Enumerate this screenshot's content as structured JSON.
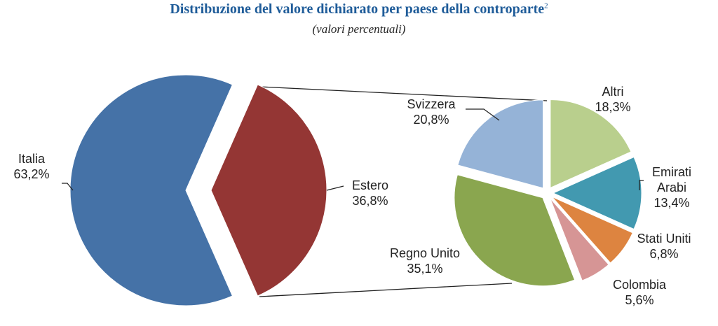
{
  "title": "Distribuzione del valore dichiarato per paese della controparte",
  "title_note": "2",
  "subtitle": "(valori percentuali)",
  "chart_data": {
    "type": "pie",
    "subtype": "pie-of-pie",
    "main": {
      "categories": [
        "Italia",
        "Estero"
      ],
      "values": [
        63.2,
        36.8
      ],
      "labels": [
        "63,2%",
        "36,8%"
      ],
      "colors": [
        "#4572a7",
        "#943634"
      ]
    },
    "secondary": {
      "parent": "Estero",
      "categories": [
        "Altri",
        "Emirati Arabi",
        "Stati Uniti",
        "Colombia",
        "Regno Unito",
        "Svizzera"
      ],
      "values": [
        18.3,
        13.4,
        6.8,
        5.6,
        35.1,
        20.8
      ],
      "labels": [
        "18,3%",
        "13,4%",
        "6,8%",
        "5,6%",
        "35,1%",
        "20,8%"
      ],
      "colors": [
        "#b9cf8d",
        "#4299b0",
        "#dd8440",
        "#d69595",
        "#8aa64f",
        "#95b3d7"
      ]
    }
  }
}
